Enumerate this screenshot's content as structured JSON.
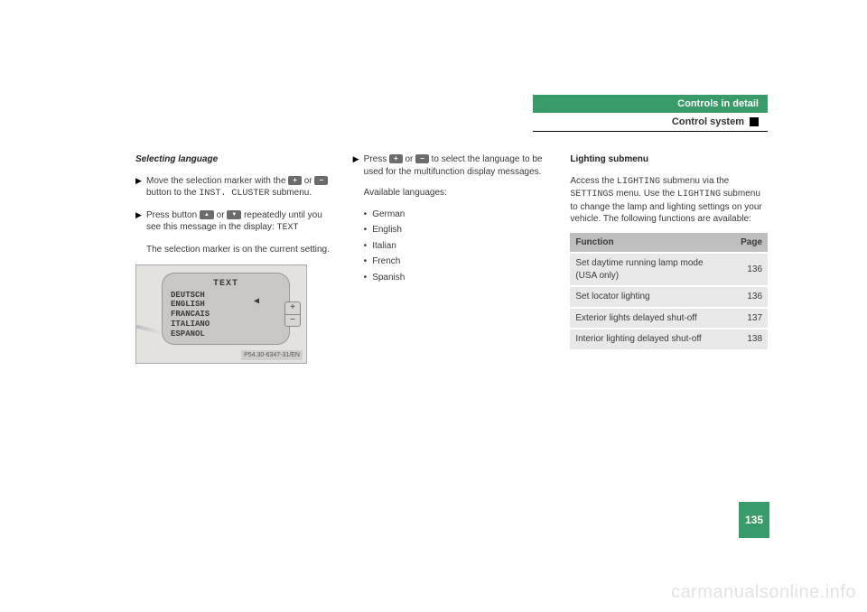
{
  "header": {
    "chapter": "Controls in detail",
    "section": "Control system",
    "bar_bg": "#3a9b6a",
    "bar_fg": "#ffffff"
  },
  "col1": {
    "heading": "Selecting language",
    "step1_a": "Move the selection marker with the ",
    "step1_b": " or ",
    "step1_c": " button to the ",
    "step1_menu": "INST. CLUSTER",
    "step1_d": " submenu.",
    "step2_a": "Press button ",
    "step2_b": " or ",
    "step2_c": " repeatedly until you see this message in the display: ",
    "step2_code": "TEXT",
    "step2_note": "The selection marker is on the current setting.",
    "display": {
      "title": "TEXT",
      "options": [
        "DEUTSCH",
        "ENGLISH",
        "FRANCAIS",
        "ITALIANO",
        "ESPANOL"
      ],
      "tag": "P54.30-6347-31/EN"
    }
  },
  "col2": {
    "step1_a": "Press ",
    "step1_b": " or ",
    "step1_c": " to select the language to be used for the multifunction display messages.",
    "avail": "Available languages:",
    "languages": [
      "German",
      "English",
      "Italian",
      "French",
      "Spanish"
    ]
  },
  "col3": {
    "heading": "Lighting submenu",
    "intro_a": "Access the ",
    "intro_m1": "LIGHTING",
    "intro_b": " submenu via the ",
    "intro_m2": "SETTINGS",
    "intro_c": " menu. Use the ",
    "intro_m3": "LIGHTING",
    "intro_d": " submenu to change the lamp and lighting settings on your vehicle. The following functions are available:",
    "table": {
      "head_func": "Function",
      "head_page": "Page",
      "rows": [
        {
          "f": "Set daytime running lamp mode (USA only)",
          "p": "136"
        },
        {
          "f": "Set locator lighting",
          "p": "136"
        },
        {
          "f": "Exterior lights delayed shut-off",
          "p": "137"
        },
        {
          "f": "Interior lighting delayed shut-off",
          "p": "138"
        }
      ],
      "head_bg": "#bfbfbf",
      "row_bg": "#e8e8e8"
    }
  },
  "buttons": {
    "plus": "+",
    "minus": "−",
    "up": "▲",
    "down": "▼"
  },
  "page_number": "135",
  "watermark": "carmanualsonline.info"
}
